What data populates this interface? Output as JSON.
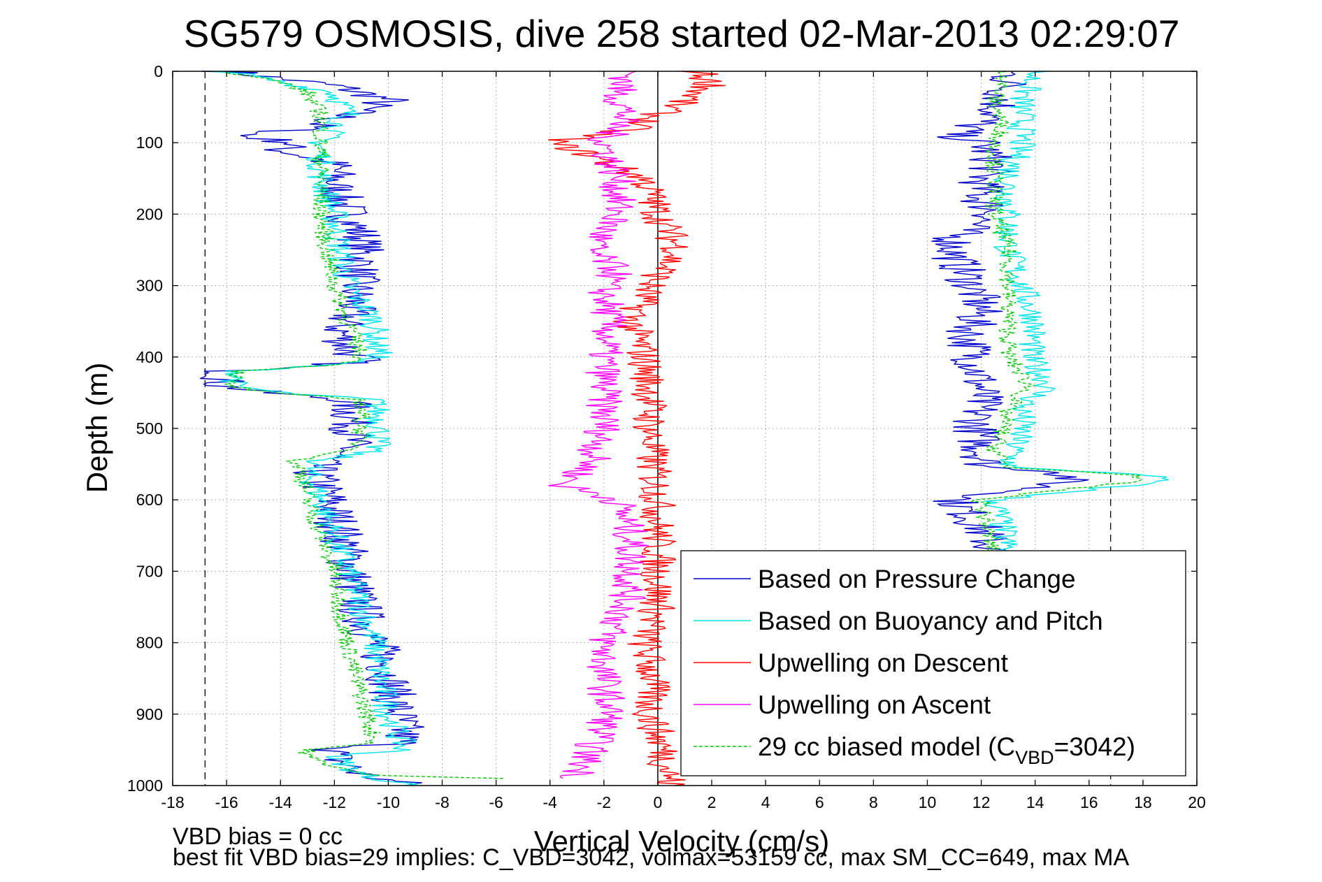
{
  "chart_data": {
    "type": "line",
    "title": "SG579 OSMOSIS, dive 258 started 02-Mar-2013 02:29:07",
    "xlabel": "Vertical Velocity (cm/s)",
    "ylabel": "Depth (m)",
    "xlim": [
      -18,
      20
    ],
    "ylim": [
      0,
      1000
    ],
    "y_reversed": true,
    "xticks": [
      -18,
      -16,
      -14,
      -12,
      -10,
      -8,
      -6,
      -4,
      -2,
      0,
      2,
      4,
      6,
      8,
      10,
      12,
      14,
      16,
      18,
      20
    ],
    "yticks": [
      0,
      100,
      200,
      300,
      400,
      500,
      600,
      700,
      800,
      900,
      1000
    ],
    "grid": true,
    "legend_position": "bottom-right",
    "reference_lines": {
      "zero_line_x": 0,
      "dashed_limits_x": [
        -16.8,
        16.8
      ]
    },
    "series": [
      {
        "name": "Based on Pressure Change",
        "color": "#0000cc",
        "style": "solid",
        "segments": [
          {
            "depth": [
              0,
              20,
              40,
              60,
              80,
              90,
              100,
              110,
              130,
              160,
              200,
              230,
              260,
              290,
              330,
              360,
              390,
              405,
              410,
              420,
              440,
              450,
              460,
              500,
              530,
              545,
              560,
              600,
              640,
              680,
              720,
              760,
              800,
              840,
              880,
              920,
              940,
              950,
              960,
              985,
              1000
            ],
            "velocity": [
              -16,
              -12,
              -10,
              -11.5,
              -13,
              -15.5,
              -13.5,
              -14,
              -12,
              -12,
              -11.5,
              -11,
              -11,
              -11.2,
              -11.3,
              -11.8,
              -11.5,
              -11,
              -12,
              -16,
              -16.2,
              -14.5,
              -11.5,
              -11.3,
              -11.5,
              -12.5,
              -12.8,
              -12.2,
              -11.8,
              -11.5,
              -11.3,
              -11,
              -10.5,
              -10,
              -9.8,
              -9.5,
              -9.5,
              -12,
              -12,
              -11,
              -9
            ]
          },
          {
            "depth": [
              0,
              20,
              60,
              90,
              100,
              130,
              150,
              180,
              200,
              230,
              260,
              290,
              330,
              370,
              410,
              450,
              500,
              530,
              555,
              560,
              570,
              580,
              590,
              600,
              640,
              680
            ],
            "velocity": [
              13,
              13,
              12.5,
              11,
              12,
              12.5,
              12,
              12,
              12.5,
              11,
              11,
              11.5,
              12,
              11.5,
              11.8,
              12,
              11.8,
              12,
              12.2,
              15,
              15.3,
              14.5,
              13,
              11,
              12,
              12.5
            ]
          }
        ]
      },
      {
        "name": "Based on Buoyancy and Pitch",
        "color": "#00e5ee",
        "style": "solid",
        "segments": [
          {
            "depth": [
              0,
              30,
              60,
              100,
              150,
              200,
              250,
              300,
              350,
              380,
              400,
              410,
              420,
              440,
              450,
              460,
              500,
              530,
              545,
              560,
              600,
              650,
              700,
              750,
              800,
              850,
              900,
              940,
              950,
              960,
              985,
              1000
            ],
            "velocity": [
              -16,
              -12,
              -11.5,
              -12.5,
              -12.5,
              -12,
              -11.8,
              -11.5,
              -10.5,
              -10.5,
              -10.3,
              -12,
              -15.5,
              -15.8,
              -14,
              -10.5,
              -10.3,
              -10.5,
              -12.5,
              -13,
              -12.5,
              -12,
              -11.5,
              -11,
              -10.5,
              -10.3,
              -10,
              -9.5,
              -9.5,
              -12,
              -11,
              -9
            ]
          },
          {
            "depth": [
              0,
              40,
              80,
              100,
              150,
              200,
              250,
              300,
              350,
              400,
              440,
              470,
              500,
              530,
              555,
              565,
              575,
              590,
              600,
              640,
              680
            ],
            "velocity": [
              14,
              13.5,
              13.5,
              13.5,
              13,
              13,
              13,
              13.5,
              14,
              13.8,
              14.5,
              13.5,
              13.5,
              13.2,
              13,
              18.5,
              18.5,
              15,
              12.5,
              12.8,
              13
            ]
          }
        ]
      },
      {
        "name": "Upwelling on Descent",
        "color": "#ff0000",
        "style": "solid",
        "segments": [
          {
            "depth": [
              0,
              20,
              50,
              80,
              100,
              110,
              150,
              200,
              250,
              300,
              350,
              400,
              450,
              500,
              550,
              600,
              650,
              700,
              750,
              800,
              850,
              900,
              950,
              1000
            ],
            "velocity": [
              1.5,
              2,
              0.5,
              -1,
              -4,
              -3,
              -0.5,
              0,
              0.8,
              -0.3,
              -1,
              -0.5,
              -0.3,
              -0.3,
              -0.2,
              0,
              0,
              0,
              0,
              -0.5,
              -0.2,
              -0.3,
              0.2,
              0.5
            ]
          }
        ]
      },
      {
        "name": "Upwelling on Ascent",
        "color": "#ff00ff",
        "style": "solid",
        "segments": [
          {
            "depth": [
              0,
              30,
              60,
              100,
              150,
              200,
              250,
              280,
              300,
              350,
              400,
              450,
              500,
              550,
              580,
              600,
              650,
              700,
              750,
              800,
              850,
              900,
              950,
              990
            ],
            "velocity": [
              -1,
              -1.5,
              -1.2,
              -2,
              -1.5,
              -1.5,
              -2.5,
              -1.5,
              -2,
              -1.8,
              -2,
              -2,
              -2,
              -2.5,
              -3.5,
              -1.5,
              -1,
              -1,
              -1.2,
              -2,
              -2,
              -1.8,
              -2.5,
              -3
            ]
          }
        ]
      },
      {
        "name": "29 cc biased model (C_VBD=3042)",
        "color": "#00cc00",
        "style": "dashed",
        "segments": [
          {
            "depth": [
              0,
              15,
              30,
              60,
              100,
              150,
              200,
              250,
              300,
              350,
              400,
              410,
              420,
              440,
              450,
              460,
              500,
              530,
              545,
              560,
              600,
              650,
              700,
              750,
              800,
              850,
              900,
              940,
              950,
              960,
              985,
              990
            ],
            "velocity": [
              -16,
              -14,
              -13,
              -12.5,
              -12.5,
              -12.5,
              -12.5,
              -12.3,
              -12,
              -11.5,
              -11,
              -11.5,
              -15.5,
              -16,
              -14.5,
              -11,
              -11,
              -11.2,
              -13.5,
              -13.2,
              -13,
              -12.5,
              -12,
              -11.8,
              -11.5,
              -11.2,
              -10.8,
              -10.5,
              -13,
              -13,
              -11,
              -6
            ]
          },
          {
            "depth": [
              0,
              40,
              80,
              100,
              150,
              200,
              250,
              300,
              350,
              400,
              440,
              470,
              500,
              530,
              555,
              565,
              575,
              590,
              600,
              640,
              680
            ],
            "velocity": [
              13,
              12.5,
              12.8,
              12.5,
              12.5,
              12.5,
              13,
              13,
              13,
              13,
              13.8,
              13,
              12.8,
              12.5,
              13,
              17.8,
              17.5,
              14,
              12,
              12.2,
              12.5
            ]
          }
        ]
      }
    ],
    "legend": [
      {
        "label": "Based on Pressure Change",
        "color": "#0000cc",
        "style": "solid"
      },
      {
        "label": "Based on Buoyancy and Pitch",
        "color": "#00e5ee",
        "style": "solid"
      },
      {
        "label": "Upwelling on Descent",
        "color": "#ff0000",
        "style": "solid"
      },
      {
        "label": "Upwelling on Ascent",
        "color": "#ff00ff",
        "style": "solid"
      },
      {
        "label": "29 cc biased model (C",
        "label_sub": "VBD",
        "label_end": "=3042)",
        "color": "#00cc00",
        "style": "dashed"
      }
    ]
  },
  "footer": {
    "line1": "VBD bias = 0 cc",
    "line2": "best fit VBD bias=29 implies: C_VBD=3042, volmax=53159 cc, max SM_CC=649, max MA"
  }
}
